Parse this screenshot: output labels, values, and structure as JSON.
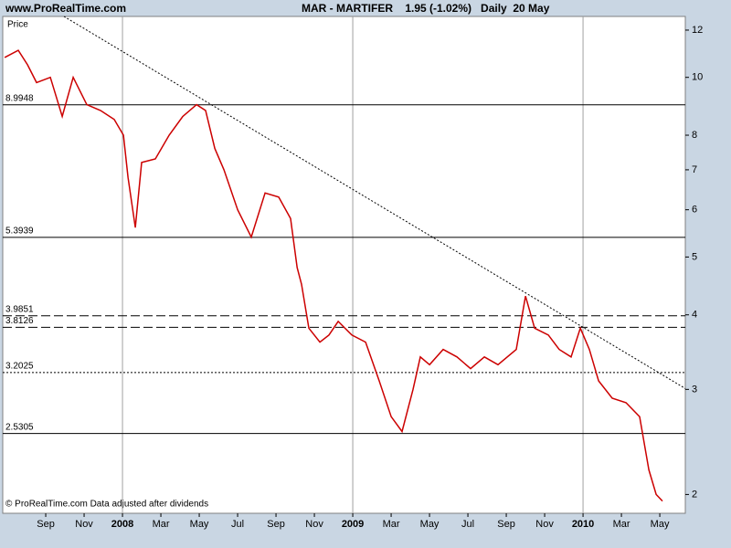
{
  "chart_data": {
    "type": "line",
    "site": "www.ProRealTime.com",
    "title": "MAR - MARTIFER    1.95 (-1.02%)   Daily  20 May",
    "y_label": "Price",
    "footer": "© ProRealTime.com  Data adjusted after dividends",
    "log_scale": true,
    "xlim": [
      -1.24,
      34.33
    ],
    "ylim": [
      1.86,
      12.65
    ],
    "xticks": [
      {
        "value": 1,
        "label": "Sep"
      },
      {
        "value": 3,
        "label": "Nov"
      },
      {
        "value": 5,
        "label": "2008"
      },
      {
        "value": 7,
        "label": "Mar"
      },
      {
        "value": 9,
        "label": "May"
      },
      {
        "value": 11,
        "label": "Jul"
      },
      {
        "value": 13,
        "label": "Sep"
      },
      {
        "value": 15,
        "label": "Nov"
      },
      {
        "value": 17,
        "label": "2009"
      },
      {
        "value": 19,
        "label": "Mar"
      },
      {
        "value": 21,
        "label": "May"
      },
      {
        "value": 23,
        "label": "Jul"
      },
      {
        "value": 25,
        "label": "Sep"
      },
      {
        "value": 27,
        "label": "Nov"
      },
      {
        "value": 29,
        "label": "2010"
      },
      {
        "value": 31,
        "label": "Mar"
      },
      {
        "value": 33,
        "label": "May"
      }
    ],
    "year_gridlines": [
      5,
      17,
      29
    ],
    "yticks": [
      12,
      10,
      8,
      7,
      6,
      5,
      4,
      3,
      2
    ],
    "levels": [
      {
        "value": 8.9948,
        "style": "solid"
      },
      {
        "value": 5.3939,
        "style": "solid"
      },
      {
        "value": 3.9851,
        "style": "dashed"
      },
      {
        "value": 3.8126,
        "style": "dashed"
      },
      {
        "value": 3.2025,
        "style": "dotted"
      },
      {
        "value": 2.5305,
        "style": "solid"
      }
    ],
    "trendline": {
      "x": [
        1.95,
        34.33
      ],
      "y": [
        12.65,
        3.01
      ]
    },
    "series": [
      {
        "name": "MAR",
        "color": "#cc0000",
        "x": [
          -1.14,
          -0.43,
          0.05,
          0.52,
          1.24,
          1.86,
          2.43,
          3.14,
          3.86,
          4.57,
          5.05,
          5.29,
          5.67,
          6.0,
          6.71,
          7.43,
          8.14,
          8.86,
          9.33,
          9.81,
          10.29,
          11.0,
          11.71,
          12.43,
          13.14,
          13.76,
          14.1,
          14.33,
          14.71,
          15.29,
          15.76,
          16.24,
          16.95,
          17.67,
          18.38,
          19.0,
          19.57,
          20.14,
          20.52,
          21.0,
          21.71,
          22.43,
          23.14,
          23.86,
          24.57,
          25.52,
          26.0,
          26.48,
          27.19,
          27.76,
          28.38,
          28.86,
          29.33,
          29.81,
          30.52,
          31.24,
          31.95,
          32.43,
          32.81,
          33.14
        ],
        "values": [
          10.8,
          11.1,
          10.5,
          9.8,
          10.0,
          8.6,
          10.0,
          9.0,
          8.8,
          8.5,
          8.0,
          6.8,
          5.6,
          7.2,
          7.3,
          8.0,
          8.6,
          9.0,
          8.8,
          7.6,
          7.0,
          6.0,
          5.4,
          6.4,
          6.3,
          5.8,
          4.8,
          4.5,
          3.8,
          3.6,
          3.7,
          3.9,
          3.7,
          3.6,
          3.1,
          2.7,
          2.55,
          3.0,
          3.4,
          3.3,
          3.5,
          3.4,
          3.25,
          3.4,
          3.3,
          3.5,
          4.3,
          3.8,
          3.7,
          3.5,
          3.4,
          3.8,
          3.5,
          3.1,
          2.9,
          2.85,
          2.7,
          2.2,
          2.0,
          1.95
        ]
      }
    ]
  }
}
